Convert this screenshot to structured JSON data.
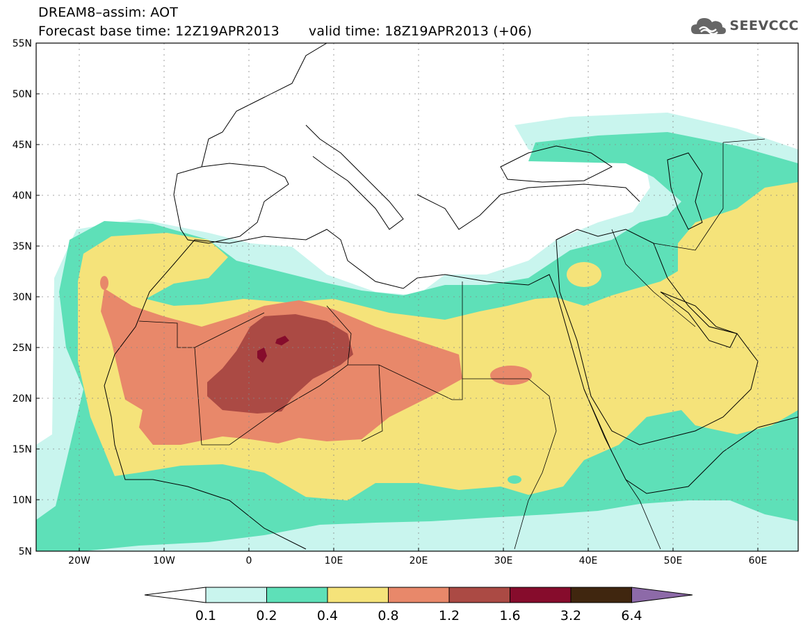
{
  "header": {
    "title_line1": "DREAM8–assim: AOT",
    "base_time": "Forecast base time: 12Z19APR2013",
    "valid_time": "valid time: 18Z19APR2013 (+06)"
  },
  "logo": {
    "icon": "cloud-logo-icon",
    "text": "SEEVCCC"
  },
  "map": {
    "lat_ticks": [
      "55N",
      "50N",
      "45N",
      "40N",
      "35N",
      "30N",
      "25N",
      "20N",
      "15N",
      "10N",
      "5N"
    ],
    "lon_ticks": [
      "20W",
      "10W",
      "0",
      "10E",
      "20E",
      "30E",
      "40E",
      "50E",
      "60E"
    ],
    "lat_range": [
      5,
      55
    ],
    "lon_range": [
      -25,
      65
    ],
    "grid": true
  },
  "colorbar": {
    "levels": [
      "0.1",
      "0.2",
      "0.4",
      "0.8",
      "1.2",
      "1.6",
      "3.2",
      "6.4"
    ],
    "colors": [
      "#c9f5ee",
      "#5ee0b8",
      "#f5e37a",
      "#e8886a",
      "#ab4a44",
      "#860c2c",
      "#40260f",
      "#8d6aa8"
    ]
  }
}
